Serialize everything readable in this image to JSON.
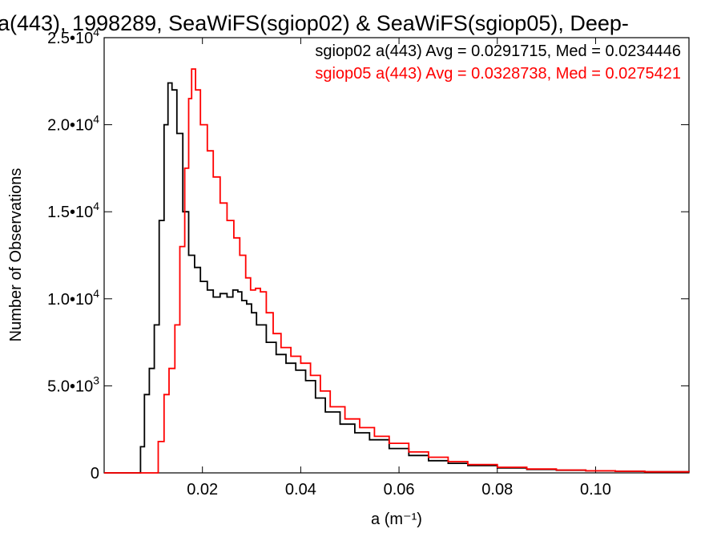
{
  "chart_data": {
    "type": "line",
    "title": "a(443), 1998289, SeaWiFS(sgiop02) & SeaWiFS(sgiop05), Deep-",
    "xlabel": "a (m⁻¹)",
    "ylabel": "Number of Observations",
    "xlim": [
      0.0,
      0.119
    ],
    "ylim": [
      0,
      25000
    ],
    "x_ticks": [
      {
        "value": 0.02,
        "label": "0.02"
      },
      {
        "value": 0.04,
        "label": "0.04"
      },
      {
        "value": 0.06,
        "label": "0.06"
      },
      {
        "value": 0.08,
        "label": "0.08"
      },
      {
        "value": 0.1,
        "label": "0.10"
      }
    ],
    "y_ticks": [
      {
        "value": 0,
        "mant": "0",
        "exp": ""
      },
      {
        "value": 5000,
        "mant": "5.0•10",
        "exp": "3"
      },
      {
        "value": 10000,
        "mant": "1.0•10",
        "exp": "4"
      },
      {
        "value": 15000,
        "mant": "1.5•10",
        "exp": "4"
      },
      {
        "value": 20000,
        "mant": "2.0•10",
        "exp": "4"
      },
      {
        "value": 25000,
        "mant": "2.5•10",
        "exp": "4"
      }
    ],
    "grid": false,
    "legend_position": "top-right",
    "series": [
      {
        "name": "sgiop02 a(443) Avg = 0.0291715, Med = 0.0234446",
        "color": "#000000",
        "points": [
          [
            0.0,
            0
          ],
          [
            0.007,
            0
          ],
          [
            0.0074,
            1500
          ],
          [
            0.0082,
            4500
          ],
          [
            0.0092,
            6000
          ],
          [
            0.0102,
            8500
          ],
          [
            0.0112,
            14500
          ],
          [
            0.0122,
            20000
          ],
          [
            0.013,
            22400
          ],
          [
            0.0138,
            22000
          ],
          [
            0.0148,
            19500
          ],
          [
            0.016,
            15000
          ],
          [
            0.0172,
            12500
          ],
          [
            0.0184,
            11800
          ],
          [
            0.0196,
            11000
          ],
          [
            0.021,
            10500
          ],
          [
            0.0222,
            10100
          ],
          [
            0.0236,
            10300
          ],
          [
            0.025,
            10100
          ],
          [
            0.0262,
            10500
          ],
          [
            0.0272,
            10400
          ],
          [
            0.028,
            9900
          ],
          [
            0.029,
            9700
          ],
          [
            0.03,
            9200
          ],
          [
            0.031,
            8500
          ],
          [
            0.033,
            7500
          ],
          [
            0.035,
            6800
          ],
          [
            0.037,
            6300
          ],
          [
            0.039,
            5900
          ],
          [
            0.041,
            5300
          ],
          [
            0.043,
            4300
          ],
          [
            0.045,
            3500
          ],
          [
            0.048,
            2800
          ],
          [
            0.051,
            2300
          ],
          [
            0.054,
            1900
          ],
          [
            0.058,
            1400
          ],
          [
            0.062,
            1000
          ],
          [
            0.066,
            700
          ],
          [
            0.07,
            550
          ],
          [
            0.074,
            420
          ],
          [
            0.08,
            280
          ],
          [
            0.086,
            200
          ],
          [
            0.092,
            150
          ],
          [
            0.098,
            120
          ],
          [
            0.104,
            90
          ],
          [
            0.11,
            60
          ],
          [
            0.119,
            40
          ]
        ]
      },
      {
        "name": "sgiop05 a(443) Avg = 0.0328738, Med = 0.0275421",
        "color": "#ff0000",
        "points": [
          [
            0.0,
            0
          ],
          [
            0.0105,
            0
          ],
          [
            0.011,
            1800
          ],
          [
            0.0122,
            4500
          ],
          [
            0.0132,
            6000
          ],
          [
            0.0144,
            8500
          ],
          [
            0.0154,
            13000
          ],
          [
            0.0164,
            17500
          ],
          [
            0.0172,
            21500
          ],
          [
            0.0178,
            23200
          ],
          [
            0.0186,
            22000
          ],
          [
            0.0196,
            20000
          ],
          [
            0.021,
            18500
          ],
          [
            0.0222,
            17000
          ],
          [
            0.0236,
            15500
          ],
          [
            0.025,
            14500
          ],
          [
            0.0264,
            13500
          ],
          [
            0.0276,
            12500
          ],
          [
            0.0288,
            11200
          ],
          [
            0.0298,
            10500
          ],
          [
            0.0308,
            10600
          ],
          [
            0.0318,
            10400
          ],
          [
            0.033,
            9200
          ],
          [
            0.0344,
            8000
          ],
          [
            0.036,
            7200
          ],
          [
            0.038,
            6700
          ],
          [
            0.04,
            6300
          ],
          [
            0.042,
            5600
          ],
          [
            0.044,
            4700
          ],
          [
            0.046,
            3800
          ],
          [
            0.049,
            3100
          ],
          [
            0.052,
            2600
          ],
          [
            0.055,
            2100
          ],
          [
            0.058,
            1700
          ],
          [
            0.062,
            1200
          ],
          [
            0.066,
            900
          ],
          [
            0.07,
            650
          ],
          [
            0.074,
            480
          ],
          [
            0.08,
            320
          ],
          [
            0.086,
            220
          ],
          [
            0.092,
            160
          ],
          [
            0.098,
            120
          ],
          [
            0.104,
            90
          ],
          [
            0.11,
            60
          ],
          [
            0.119,
            40
          ]
        ]
      }
    ]
  }
}
